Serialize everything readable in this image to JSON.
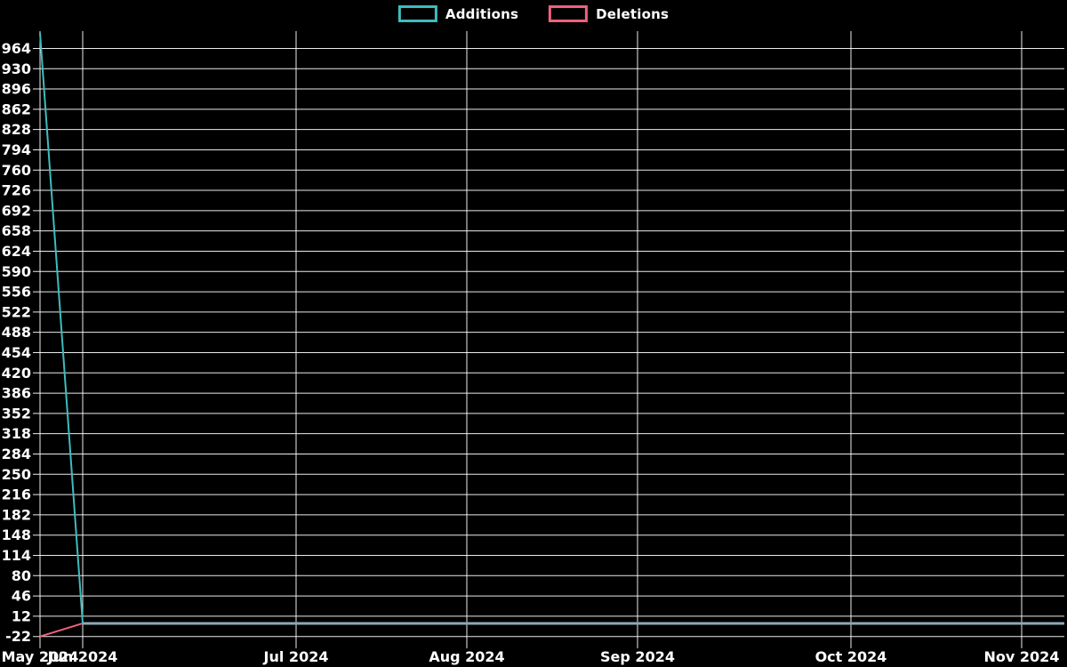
{
  "page": {
    "background": "#000000",
    "text_color": "#ffffff",
    "gridline_color": "#ffffff"
  },
  "legend": {
    "items": [
      {
        "label": "Additions",
        "color": "#3fbcbe"
      },
      {
        "label": "Deletions",
        "color": "#ef617c"
      }
    ]
  },
  "chart_data": {
    "type": "line",
    "title": "",
    "xlabel": "",
    "ylabel": "",
    "grid": true,
    "legend_position": "top-center",
    "background": "#000000",
    "x_unit": "weekly points, 25 points from late May 2024 through late Nov 2024",
    "weeks": 25,
    "x_tick_labels": [
      {
        "label": "May 2024",
        "week": 0
      },
      {
        "label": "Jun 2024",
        "week": 1
      },
      {
        "label": "Jul 2024",
        "week": 6
      },
      {
        "label": "Aug 2024",
        "week": 10
      },
      {
        "label": "Sep 2024",
        "week": 14
      },
      {
        "label": "Oct 2024",
        "week": 19
      },
      {
        "label": "Nov 2024",
        "week": 23
      }
    ],
    "y_ticks": [
      964,
      930,
      896,
      862,
      828,
      794,
      760,
      726,
      692,
      658,
      624,
      590,
      556,
      522,
      488,
      454,
      420,
      386,
      352,
      318,
      284,
      250,
      216,
      182,
      148,
      114,
      80,
      46,
      12,
      -22
    ],
    "ylim": [
      -22,
      993
    ],
    "series": [
      {
        "name": "Additions",
        "color": "#3fbcbe",
        "values": [
          990,
          0,
          0,
          0,
          0,
          0,
          0,
          0,
          0,
          0,
          0,
          0,
          0,
          0,
          0,
          0,
          0,
          0,
          0,
          0,
          0,
          0,
          0,
          0,
          0
        ]
      },
      {
        "name": "Deletions",
        "color": "#ef617c",
        "values": [
          -22,
          0,
          0,
          0,
          0,
          0,
          0,
          0,
          0,
          0,
          0,
          0,
          0,
          0,
          0,
          0,
          0,
          0,
          0,
          0,
          0,
          0,
          0,
          0,
          0
        ]
      }
    ],
    "overlap_line_color": "#90a7b6"
  }
}
